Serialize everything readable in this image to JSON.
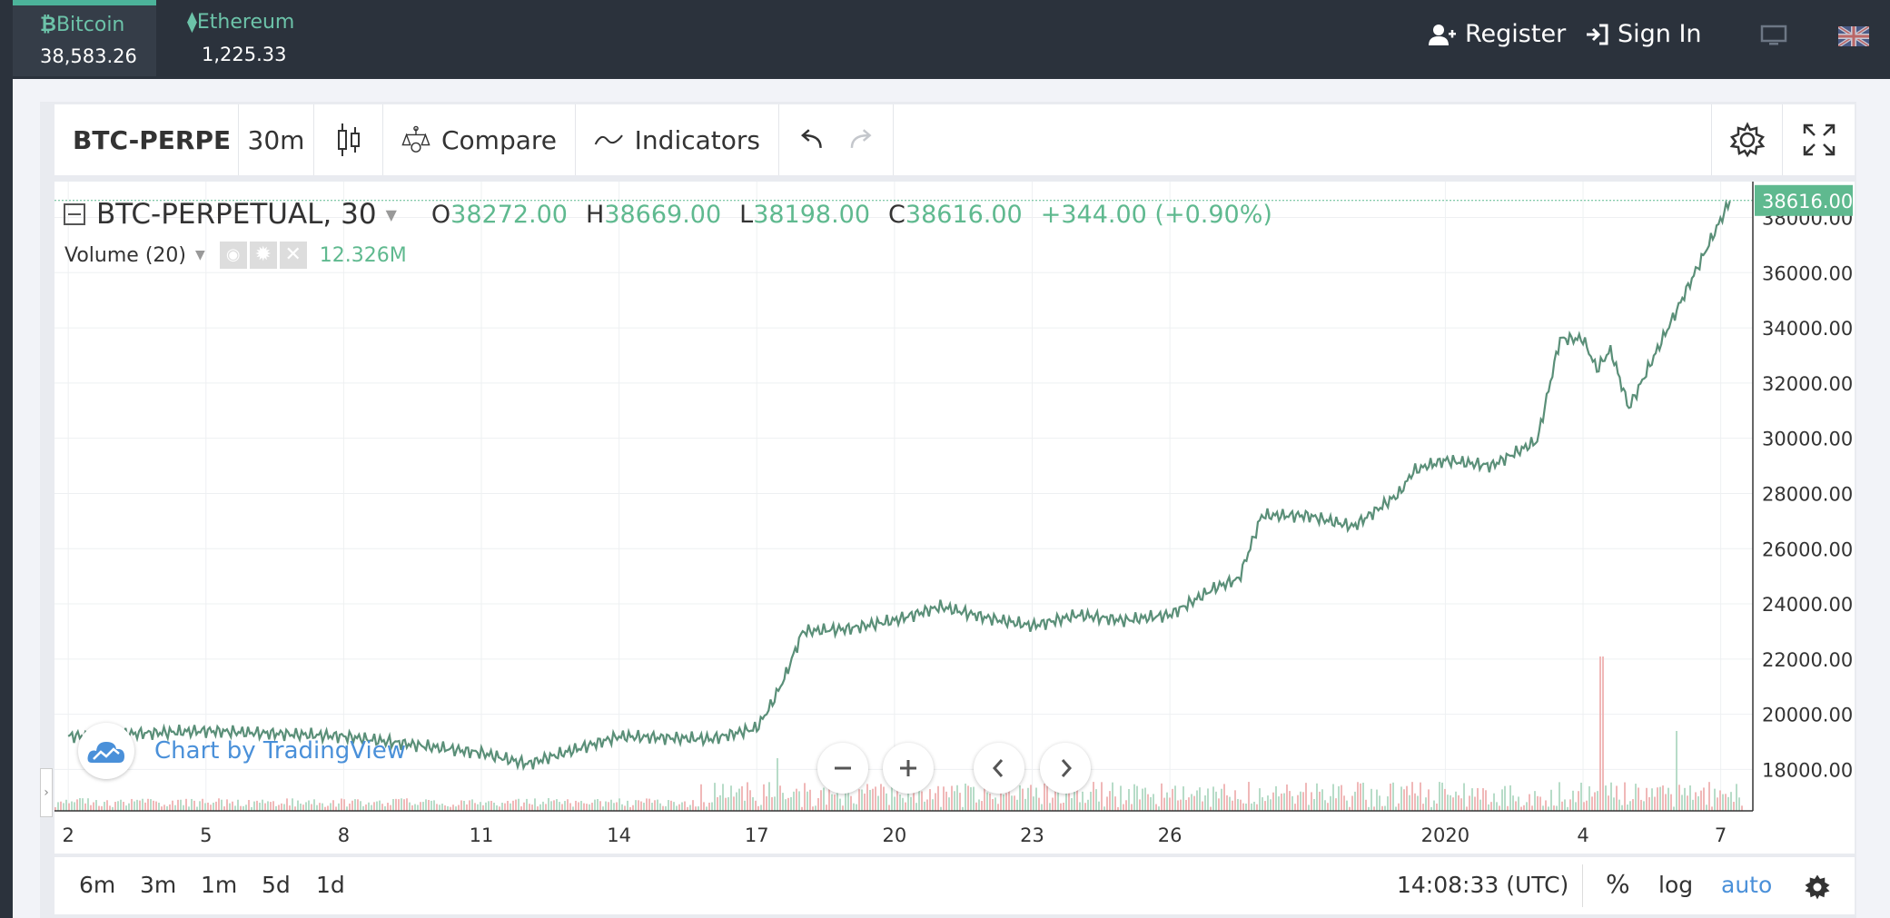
{
  "header": {
    "tickers": [
      {
        "name": "Bitcoin",
        "price": "38,583.26",
        "active": true
      },
      {
        "name": "Ethereum",
        "price": "1,225.33",
        "active": false
      }
    ],
    "register_label": "Register",
    "signin_label": "Sign In"
  },
  "toolbar": {
    "symbol": "BTC-PERPE",
    "interval": "30m",
    "compare_label": "Compare",
    "indicators_label": "Indicators"
  },
  "legend": {
    "title": "BTC-PERPETUAL, 30",
    "o_label": "O",
    "o_value": "38272.00",
    "h_label": "H",
    "h_value": "38669.00",
    "l_label": "L",
    "l_value": "38198.00",
    "c_label": "C",
    "c_value": "38616.00",
    "change": "+344.00 (+0.90%)",
    "volume_label": "Volume (20)",
    "volume_value": "12.326M",
    "watermark": "Chart by TradingView"
  },
  "chart_data": {
    "type": "line",
    "title": "BTC-PERPETUAL, 30",
    "x_tick_labels": [
      "2",
      "5",
      "8",
      "11",
      "14",
      "17",
      "20",
      "23",
      "26",
      "2020",
      "4",
      "7"
    ],
    "y_tick_labels": [
      "18000.00",
      "20000.00",
      "22000.00",
      "24000.00",
      "26000.00",
      "28000.00",
      "30000.00",
      "32000.00",
      "34000.00",
      "36000.00",
      "38000.00"
    ],
    "ylim": [
      16500,
      39300
    ],
    "last_price_label": "38616.00",
    "x": [
      0,
      3,
      6,
      9,
      10,
      12,
      14,
      15,
      15.3,
      15.6,
      16,
      17,
      18,
      19,
      20,
      21,
      22,
      23,
      24,
      25,
      25.5,
      26,
      27,
      28,
      29,
      29.3,
      29.6,
      30,
      31,
      32,
      32.5,
      33,
      33.3,
      33.6,
      34,
      35,
      36.2
    ],
    "values": [
      19200,
      19400,
      19200,
      18600,
      18200,
      19200,
      19100,
      19500,
      20300,
      21300,
      23000,
      23100,
      23400,
      23900,
      23500,
      23200,
      23600,
      23400,
      23600,
      24600,
      24900,
      27200,
      27200,
      26800,
      28000,
      28800,
      29000,
      29200,
      29000,
      29900,
      33600,
      33600,
      32500,
      33200,
      31100,
      34500,
      38600
    ]
  },
  "bottom": {
    "ranges": [
      "6m",
      "3m",
      "1m",
      "5d",
      "1d"
    ],
    "time": "14:08:33 (UTC)",
    "percent": "%",
    "log": "log",
    "auto": "auto"
  },
  "colors": {
    "up": "#5fb98f",
    "down": "#e88f8f",
    "accent": "#4cb39a",
    "topbar": "#2b323c",
    "link": "#4a90d9"
  }
}
